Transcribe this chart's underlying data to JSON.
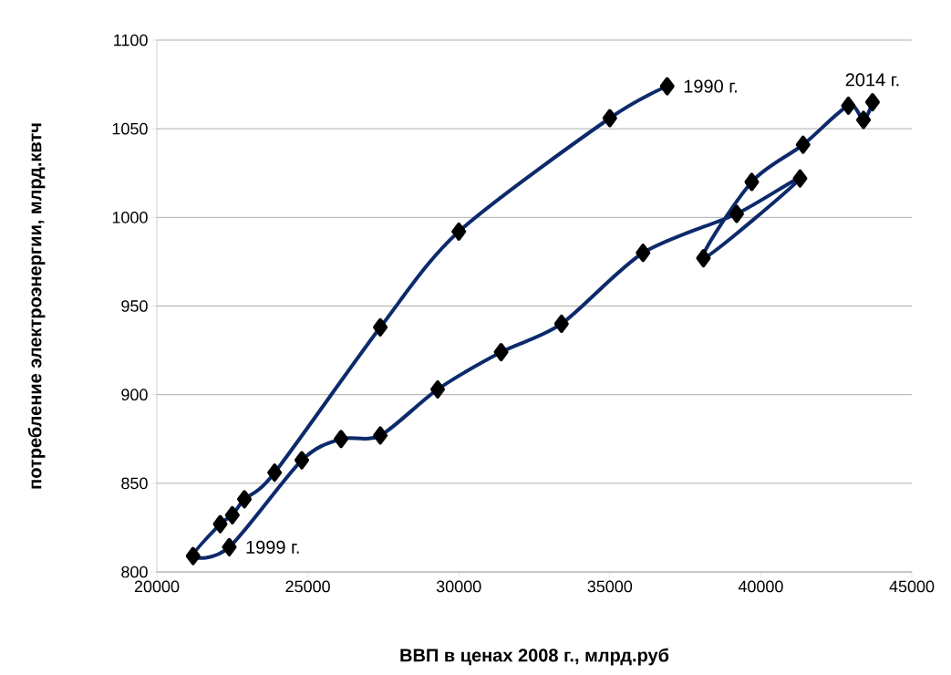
{
  "chart_data": {
    "type": "line",
    "xlabel": "ВВП в ценах 2008 г., млрд.руб",
    "ylabel": "потребление электроэнергии, млрд.квтч",
    "x": [
      36900,
      35000,
      30000,
      27400,
      23900,
      22900,
      22500,
      22100,
      21200,
      22400,
      24800,
      26100,
      27400,
      29300,
      31400,
      33400,
      36100,
      39200,
      41300,
      38100,
      39700,
      41400,
      42900,
      43400,
      43700
    ],
    "series": [
      {
        "color": "#0c2a6b",
        "values": [
          1074,
          1056,
          992,
          938,
          856,
          841,
          832,
          827,
          809,
          814,
          863,
          875,
          877,
          903,
          924,
          940,
          980,
          1002,
          1022,
          977,
          1020,
          1041,
          1063,
          1055,
          1065
        ]
      }
    ],
    "xlim": [
      20000,
      45000
    ],
    "ylim": [
      800,
      1100
    ],
    "xticks": [
      20000,
      25000,
      30000,
      35000,
      40000,
      45000
    ],
    "yticks": [
      800,
      850,
      900,
      950,
      1000,
      1050,
      1100
    ],
    "grid": "y",
    "marker": "diamond",
    "line_style": "solid",
    "annotations": [
      {
        "text": "1990 г.",
        "x": 36900,
        "y": 1074
      },
      {
        "text": "1999 г.",
        "x": 22400,
        "y": 814
      },
      {
        "text": "2014 г.",
        "x": 43700,
        "y": 1065
      }
    ]
  }
}
